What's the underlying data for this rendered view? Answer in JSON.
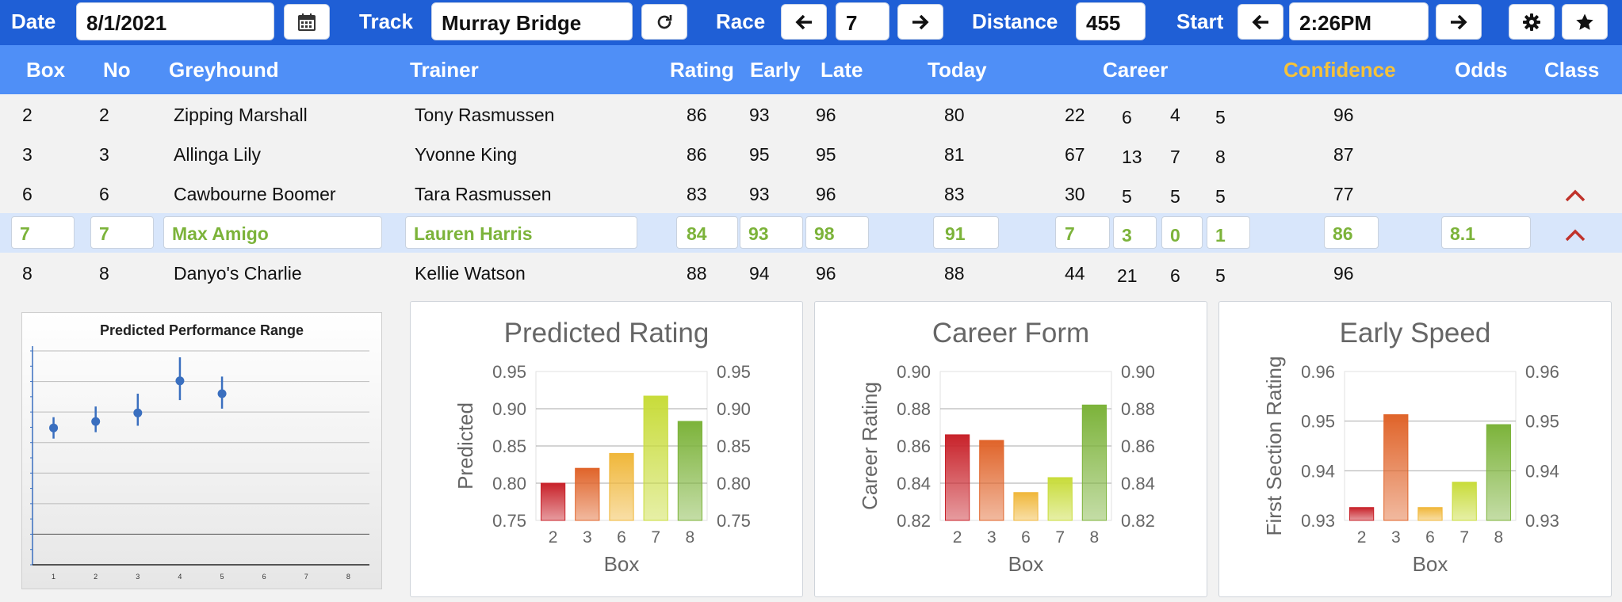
{
  "toolbar": {
    "date_label": "Date",
    "date_value": "8/1/2021",
    "track_label": "Track",
    "track_value": "Murray Bridge",
    "race_label": "Race",
    "race_value": "7",
    "distance_label": "Distance",
    "distance_value": "455",
    "start_label": "Start",
    "start_value": "2:26PM",
    "icons": [
      "calendar-icon",
      "refresh-icon",
      "arrow-left-icon",
      "arrow-right-icon",
      "gear-icon",
      "star-icon"
    ]
  },
  "columns": {
    "box": "Box",
    "no": "No",
    "greyhound": "Greyhound",
    "trainer": "Trainer",
    "rating": "Rating",
    "early": "Early",
    "late": "Late",
    "today": "Today",
    "career": "Career",
    "confidence": "Confidence",
    "odds": "Odds",
    "class": "Class"
  },
  "colors": {
    "toolbar": "#1f5fd6",
    "header": "#4f8ff7",
    "confidence_header": "#f5c23a",
    "selected_text": "#7cb33a",
    "caret": "#c0322b"
  },
  "rows": [
    {
      "box": "2",
      "no": "2",
      "greyhound": "Zipping Marshall",
      "trainer": "Tony Rasmussen",
      "rating": "86",
      "early": "93",
      "late": "96",
      "today": "80",
      "career_starts": "22",
      "career_wins": "6",
      "career_seconds": "4",
      "career_thirds": "5",
      "confidence": "96",
      "odds": "",
      "class_trend": ""
    },
    {
      "box": "3",
      "no": "3",
      "greyhound": "Allinga Lily",
      "trainer": "Yvonne King",
      "rating": "86",
      "early": "95",
      "late": "95",
      "today": "81",
      "career_starts": "67",
      "career_wins": "13",
      "career_seconds": "7",
      "career_thirds": "8",
      "confidence": "87",
      "odds": "",
      "class_trend": ""
    },
    {
      "box": "6",
      "no": "6",
      "greyhound": "Cawbourne Boomer",
      "trainer": "Tara Rasmussen",
      "rating": "83",
      "early": "93",
      "late": "96",
      "today": "83",
      "career_starts": "30",
      "career_wins": "5",
      "career_seconds": "5",
      "career_thirds": "5",
      "confidence": "77",
      "odds": "",
      "class_trend": "up"
    },
    {
      "box": "7",
      "no": "7",
      "greyhound": "Max Amigo",
      "trainer": "Lauren Harris",
      "rating": "84",
      "early": "93",
      "late": "98",
      "today": "91",
      "career_starts": "7",
      "career_wins": "3",
      "career_seconds": "0",
      "career_thirds": "1",
      "confidence": "86",
      "odds": "8.1",
      "class_trend": "up",
      "selected": true
    },
    {
      "box": "8",
      "no": "8",
      "greyhound": "Danyo's Charlie",
      "trainer": "Kellie Watson",
      "rating": "88",
      "early": "94",
      "late": "96",
      "today": "88",
      "career_starts": "44",
      "career_wins": "21",
      "career_seconds": "6",
      "career_thirds": "5",
      "confidence": "96",
      "odds": "",
      "class_trend": ""
    }
  ],
  "chart_data": [
    {
      "type": "scatter",
      "title": "Predicted Performance Range",
      "x": [
        1,
        2,
        3,
        4,
        5
      ],
      "y": [
        0.64,
        0.67,
        0.71,
        0.86,
        0.8
      ],
      "error_low": [
        0.59,
        0.62,
        0.65,
        0.77,
        0.73
      ],
      "error_high": [
        0.69,
        0.74,
        0.8,
        0.97,
        0.88
      ],
      "xticks": [
        "1",
        "2",
        "3",
        "4",
        "5",
        "6",
        "7",
        "8"
      ],
      "xlim": [
        0.5,
        8.5
      ],
      "ylim": [
        0,
        1.0
      ],
      "color": "#3a6fbf"
    },
    {
      "type": "bar",
      "title": "Predicted Rating",
      "xlabel": "Box",
      "ylabel": "Predicted",
      "categories": [
        "2",
        "3",
        "6",
        "7",
        "8"
      ],
      "values": [
        0.8,
        0.82,
        0.84,
        0.917,
        0.883
      ],
      "ylim": [
        0.75,
        0.95
      ],
      "yticks": [
        "0.75",
        "0.80",
        "0.85",
        "0.90",
        "0.95"
      ],
      "colors": [
        "#c8222a",
        "#e0642a",
        "#f0b73a",
        "#c8dc3a",
        "#7cb33a"
      ]
    },
    {
      "type": "bar",
      "title": "Career Form",
      "xlabel": "Box",
      "ylabel": "Career Rating",
      "categories": [
        "2",
        "3",
        "6",
        "7",
        "8"
      ],
      "values": [
        0.866,
        0.863,
        0.835,
        0.843,
        0.882
      ],
      "ylim": [
        0.82,
        0.9
      ],
      "yticks": [
        "0.82",
        "0.84",
        "0.86",
        "0.88",
        "0.90"
      ],
      "colors": [
        "#c8222a",
        "#e0642a",
        "#f0b73a",
        "#c8dc3a",
        "#7cb33a"
      ]
    },
    {
      "type": "bar",
      "title": "Early Speed",
      "xlabel": "Box",
      "ylabel": "First Section Rating",
      "categories": [
        "2",
        "3",
        "6",
        "7",
        "8"
      ],
      "values": [
        0.9326,
        0.9513,
        0.9326,
        0.9377,
        0.9493
      ],
      "ylim": [
        0.93,
        0.96
      ],
      "yticks": [
        "0.93",
        "0.94",
        "0.95",
        "0.96"
      ],
      "colors": [
        "#c8222a",
        "#e0642a",
        "#f0b73a",
        "#c8dc3a",
        "#7cb33a"
      ]
    }
  ]
}
